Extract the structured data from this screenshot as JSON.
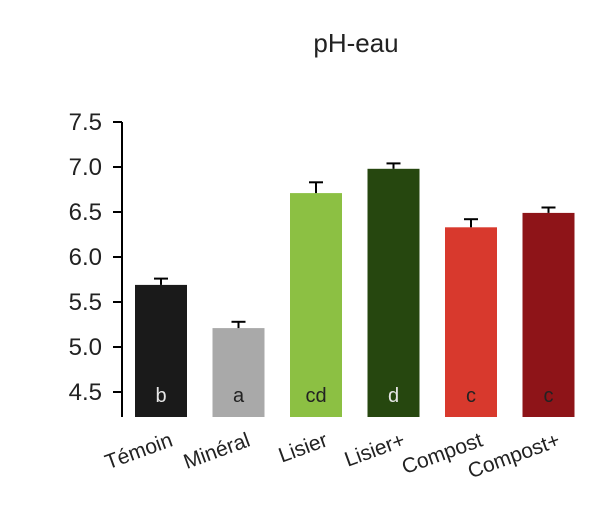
{
  "chart_data": {
    "type": "bar",
    "title": "pH-eau",
    "xlabel": "",
    "ylabel": "",
    "ylim": [
      4.2,
      7.5
    ],
    "yticks": [
      4.5,
      5.0,
      5.5,
      6.0,
      6.5,
      7.0,
      7.5
    ],
    "ytick_labels": [
      "4.5",
      "5.0",
      "5.5",
      "6.0",
      "6.5",
      "7.0",
      "7.5"
    ],
    "grid": false,
    "legend": "none",
    "categories": [
      "Témoin",
      "Minéral",
      "Lisier",
      "Lisier+",
      "Compost",
      "Compost+"
    ],
    "values": [
      5.69,
      5.21,
      6.71,
      6.98,
      6.33,
      6.49
    ],
    "errors": [
      0.07,
      0.07,
      0.12,
      0.06,
      0.09,
      0.06
    ],
    "letters": [
      "b",
      "a",
      "cd",
      "d",
      "c",
      "c"
    ],
    "colors": [
      "#1a1a1a",
      "#a9a9a9",
      "#8cc043",
      "#26470f",
      "#d8392d",
      "#8e1418"
    ],
    "letter_colors": [
      "#e6e6e6",
      "#222222",
      "#222222",
      "#e6e6e6",
      "#222222",
      "#222222"
    ]
  }
}
